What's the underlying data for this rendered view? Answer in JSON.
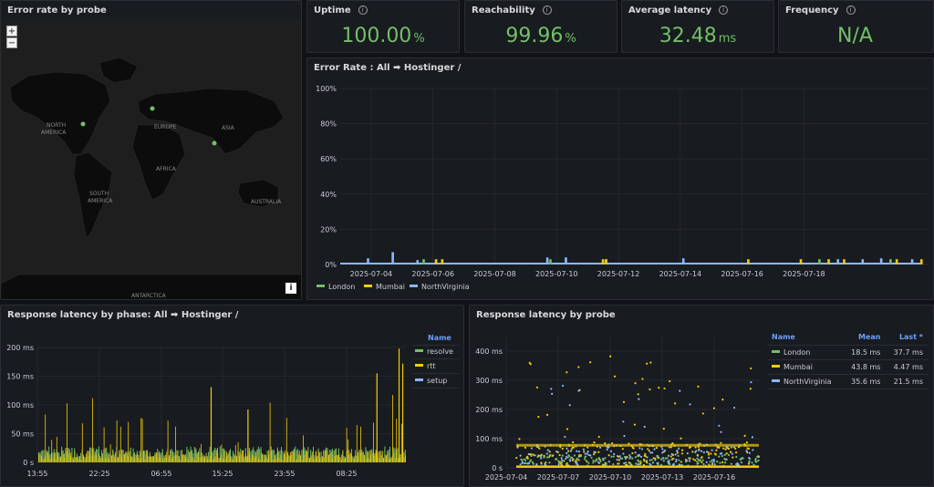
{
  "map": {
    "title": "Error rate by probe",
    "zoom_in": "+",
    "zoom_out": "−",
    "info": "i",
    "labels": [
      {
        "name": "NORTH",
        "x": 50,
        "y": 118
      },
      {
        "name": "AMERICA",
        "x": 44,
        "y": 126
      },
      {
        "name": "EUROPE",
        "x": 168,
        "y": 120
      },
      {
        "name": "ASIA",
        "x": 242,
        "y": 121
      },
      {
        "name": "AFRICA",
        "x": 170,
        "y": 166
      },
      {
        "name": "SOUTH",
        "x": 97,
        "y": 193
      },
      {
        "name": "AMERICA",
        "x": 95,
        "y": 201
      },
      {
        "name": "AUSTRALIA",
        "x": 274,
        "y": 202
      },
      {
        "name": "ANTARCTICA",
        "x": 143,
        "y": 305
      }
    ]
  },
  "stats": [
    {
      "title": "Uptime",
      "value": "100.00",
      "unit": "%"
    },
    {
      "title": "Reachability",
      "value": "99.96",
      "unit": "%"
    },
    {
      "title": "Average latency",
      "value": "32.48",
      "unit": "ms"
    },
    {
      "title": "Frequency",
      "value": "N/A",
      "unit": ""
    }
  ],
  "colors": {
    "green": "#73bf69",
    "yellow": "#f2cc0c",
    "blue": "#8ab8ff",
    "bg": "#181b1f",
    "grid": "#2a2d33"
  },
  "chart_data": [
    {
      "type": "bar",
      "title": "Error Rate : All ➡ Hostinger /",
      "y_ticks": [
        "0%",
        "20%",
        "40%",
        "60%",
        "80%",
        "100%"
      ],
      "ylim": [
        0,
        100
      ],
      "x_ticks": [
        "2025-07-04",
        "2025-07-06",
        "2025-07-08",
        "2025-07-10",
        "2025-07-12",
        "2025-07-14",
        "2025-07-16",
        "2025-07-18"
      ],
      "legend_placement": "bottom-left",
      "series": [
        {
          "name": "London",
          "color": "#73bf69",
          "spikes": [
            [
              2.3,
              3
            ],
            [
              6.4,
              3
            ],
            [
              8.2,
              3
            ],
            [
              15.1,
              3
            ],
            [
              17.4,
              3
            ]
          ]
        },
        {
          "name": "Mumbai",
          "color": "#f2cc0c",
          "spikes": [
            [
              2.7,
              3
            ],
            [
              2.9,
              3
            ],
            [
              8.1,
              3
            ],
            [
              8.2,
              3
            ],
            [
              12.8,
              3
            ],
            [
              14.5,
              3
            ],
            [
              15.4,
              3
            ],
            [
              15.9,
              3
            ],
            [
              17.6,
              3
            ],
            [
              18.4,
              3
            ]
          ]
        },
        {
          "name": "NorthVirginia",
          "color": "#8ab8ff",
          "spikes": [
            [
              0.5,
              3.5
            ],
            [
              1.3,
              7
            ],
            [
              2.1,
              2.5
            ],
            [
              6.3,
              4
            ],
            [
              6.9,
              4
            ],
            [
              10.7,
              3.5
            ],
            [
              15.7,
              3
            ],
            [
              16.5,
              3
            ],
            [
              17.1,
              3.5
            ],
            [
              18.1,
              3
            ]
          ]
        }
      ]
    },
    {
      "type": "bar",
      "title": "Response latency by phase: All ➡ Hostinger /",
      "y_ticks": [
        "0 s",
        "50 ms",
        "100 ms",
        "150 ms",
        "200 ms"
      ],
      "ylim": [
        0,
        200
      ],
      "x_ticks": [
        "13:55",
        "22:25",
        "06:55",
        "15:25",
        "23:55",
        "08:25"
      ],
      "legend_title": "Name",
      "series": [
        {
          "name": "resolve",
          "color": "#73bf69"
        },
        {
          "name": "rtt",
          "color": "#f2cc0c"
        },
        {
          "name": "setup",
          "color": "#8ab8ff"
        }
      ],
      "approx_peaks": [
        [
          0.47,
          131
        ],
        [
          0.57,
          92
        ],
        [
          0.92,
          155
        ],
        [
          0.98,
          198
        ],
        [
          0.99,
          172
        ]
      ]
    },
    {
      "type": "scatter",
      "title": "Response latency by probe",
      "y_ticks": [
        "0 s",
        "100 ms",
        "200 ms",
        "300 ms",
        "400 ms"
      ],
      "ylim": [
        0,
        450
      ],
      "x_ticks": [
        "2025-07-04",
        "2025-07-07",
        "2025-07-10",
        "2025-07-13",
        "2025-07-16"
      ],
      "legend_columns": [
        "Name",
        "Mean",
        "Last *"
      ],
      "series": [
        {
          "name": "London",
          "color": "#73bf69",
          "mean": "18.5 ms",
          "last": "37.7 ms"
        },
        {
          "name": "Mumbai",
          "color": "#f2cc0c",
          "mean": "43.8 ms",
          "last": "4.47 ms"
        },
        {
          "name": "NorthVirginia",
          "color": "#8ab8ff",
          "mean": "35.6 ms",
          "last": "21.5 ms"
        }
      ]
    }
  ]
}
